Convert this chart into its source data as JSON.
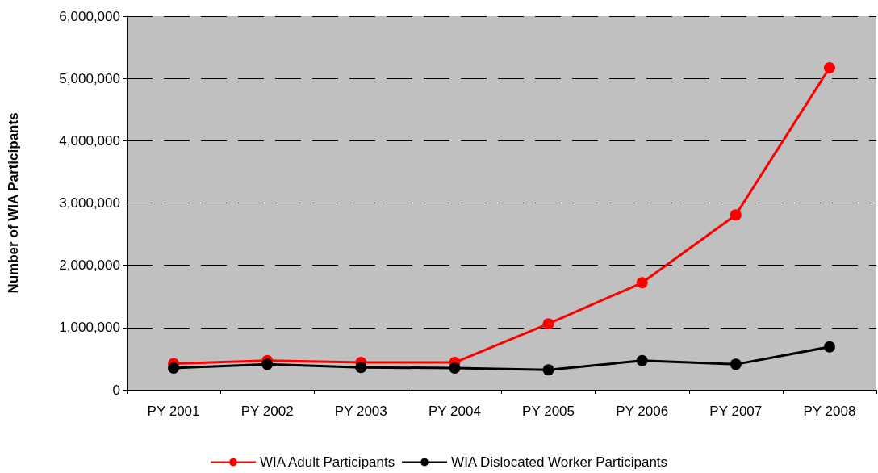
{
  "chart_data": {
    "type": "line",
    "ylabel": "Number of WIA Participants",
    "categories": [
      "PY 2001",
      "PY 2002",
      "PY 2003",
      "PY 2004",
      "PY 2005",
      "PY 2006",
      "PY 2007",
      "PY 2008"
    ],
    "series": [
      {
        "name": "WIA Adult Participants",
        "color": "#ff0000",
        "values": [
          420000,
          470000,
          440000,
          440000,
          1060000,
          1720000,
          2810000,
          5170000
        ]
      },
      {
        "name": "WIA Dislocated Worker Participants",
        "color": "#000000",
        "values": [
          350000,
          410000,
          360000,
          350000,
          320000,
          470000,
          410000,
          690000
        ]
      }
    ],
    "ylim": [
      0,
      6000000
    ],
    "yticks": [
      0,
      {
        "value": 1000000,
        "label": "1,000,000"
      },
      {
        "value": 2000000,
        "label": "2,000,000"
      },
      {
        "value": 3000000,
        "label": "3,000,000"
      },
      {
        "value": 4000000,
        "label": "4,000,000"
      },
      {
        "value": 5000000,
        "label": "5,000,000"
      },
      {
        "value": 6000000,
        "label": "6,000,000"
      }
    ],
    "grid": "y",
    "legend": "bottom",
    "marker": "circle",
    "line_style": "solid"
  }
}
